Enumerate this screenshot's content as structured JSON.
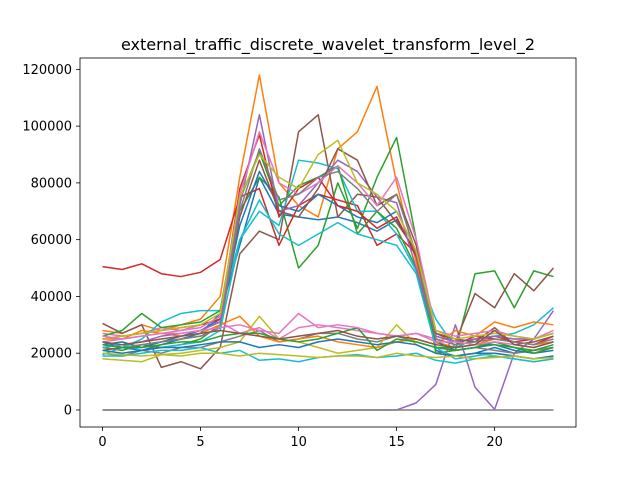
{
  "chart_data": {
    "type": "line",
    "title": "external_traffic_discrete_wavelet_transform_level_2",
    "xlabel": "",
    "ylabel": "",
    "xlim": [
      -1.15,
      24.15
    ],
    "ylim": [
      -6000,
      124000
    ],
    "xticks": [
      0,
      5,
      10,
      15,
      20
    ],
    "xtick_labels": [
      "0",
      "5",
      "10",
      "15",
      "20"
    ],
    "yticks": [
      0,
      20000,
      40000,
      60000,
      80000,
      100000,
      120000
    ],
    "ytick_labels": [
      "0",
      "20000",
      "40000",
      "60000",
      "80000",
      "100000",
      "120000"
    ],
    "grid": false,
    "x": [
      0,
      1,
      2,
      3,
      4,
      5,
      6,
      7,
      8,
      9,
      10,
      11,
      12,
      13,
      14,
      15,
      16,
      17,
      18,
      19,
      20,
      21,
      22,
      23
    ],
    "series": [
      {
        "color": "#1f77b4",
        "values": [
          24000,
          22000,
          21000,
          23000,
          25000,
          27000,
          34000,
          58000,
          82000,
          69000,
          68000,
          67000,
          68000,
          66000,
          63000,
          67000,
          55000,
          21000,
          19000,
          20000,
          22000,
          20000,
          21000,
          22000
        ]
      },
      {
        "color": "#ff7f0e",
        "values": [
          28000,
          27000,
          30000,
          28000,
          30000,
          32000,
          40000,
          82000,
          118000,
          80000,
          72000,
          68000,
          92000,
          98000,
          114000,
          80000,
          52000,
          24000,
          22000,
          23000,
          25000,
          24000,
          23000,
          24000
        ]
      },
      {
        "color": "#2ca02c",
        "values": [
          22000,
          21000,
          23000,
          22000,
          23000,
          25000,
          30000,
          70000,
          82000,
          75000,
          50000,
          58000,
          80000,
          64000,
          82000,
          96000,
          60000,
          20000,
          21000,
          48000,
          49000,
          36000,
          49000,
          47000
        ]
      },
      {
        "color": "#d62728",
        "values": [
          50500,
          49500,
          51500,
          48000,
          47000,
          48500,
          53000,
          75000,
          78000,
          58000,
          72000,
          76000,
          74000,
          72000,
          58000,
          62000,
          55000,
          26000,
          24000,
          25000,
          26000,
          24000,
          25000,
          27000
        ]
      },
      {
        "color": "#9467bd",
        "values": [
          0,
          0,
          0,
          0,
          0,
          0,
          0,
          0,
          0,
          0,
          0,
          0,
          0,
          0,
          0,
          0,
          2500,
          9000,
          30000,
          8000,
          200,
          20000,
          25000,
          35000
        ]
      },
      {
        "color": "#8c564b",
        "values": [
          30500,
          27000,
          30000,
          15000,
          17000,
          14500,
          22000,
          55000,
          63000,
          60000,
          98000,
          104000,
          68000,
          76000,
          75000,
          66000,
          56000,
          27000,
          24000,
          41000,
          36000,
          48000,
          42000,
          50000
        ]
      },
      {
        "color": "#e377c2",
        "values": [
          27000,
          26000,
          27000,
          29000,
          28000,
          30000,
          31000,
          27000,
          29000,
          25000,
          29000,
          30000,
          29000,
          28000,
          27000,
          26000,
          27000,
          25000,
          23000,
          24000,
          26000,
          25000,
          25000,
          27000
        ]
      },
      {
        "color": "#7f7f7f",
        "values": [
          20000,
          19000,
          21000,
          20000,
          22000,
          22000,
          24000,
          26000,
          28000,
          24000,
          25000,
          27000,
          27000,
          25000,
          24000,
          26000,
          24000,
          22000,
          21000,
          22000,
          21000,
          20000,
          21000,
          22000
        ]
      },
      {
        "color": "#bcbd22",
        "values": [
          18000,
          17500,
          17000,
          19500,
          20000,
          21000,
          22000,
          24000,
          33000,
          25000,
          24000,
          22000,
          20000,
          21000,
          22000,
          30000,
          23000,
          20000,
          19000,
          20000,
          19000,
          18000,
          17000,
          18000
        ]
      },
      {
        "color": "#17becf",
        "values": [
          19500,
          22000,
          25000,
          31000,
          34000,
          35000,
          35000,
          60000,
          70000,
          65000,
          88000,
          87000,
          85000,
          70000,
          70000,
          62000,
          49000,
          32000,
          22000,
          25000,
          26000,
          27000,
          30000,
          36000
        ]
      },
      {
        "color": "#1f77b4",
        "values": [
          23000,
          24000,
          22000,
          24000,
          26000,
          28000,
          32000,
          65000,
          84000,
          72000,
          70000,
          76000,
          72000,
          68000,
          66000,
          70000,
          56000,
          24000,
          21000,
          22000,
          23000,
          21000,
          20000,
          21000
        ]
      },
      {
        "color": "#ff7f0e",
        "values": [
          25000,
          25000,
          28000,
          27000,
          26000,
          27000,
          30000,
          33000,
          26000,
          24000,
          25000,
          26000,
          24000,
          23000,
          22000,
          24000,
          25000,
          23000,
          28000,
          26000,
          31000,
          29000,
          31000,
          30000
        ]
      },
      {
        "color": "#2ca02c",
        "values": [
          26000,
          28000,
          34000,
          29000,
          30000,
          31000,
          35000,
          74000,
          91000,
          72000,
          79000,
          82000,
          86000,
          62000,
          70000,
          64000,
          50000,
          22000,
          21000,
          22000,
          24000,
          22000,
          20000,
          22000
        ]
      },
      {
        "color": "#d62728",
        "values": [
          25000,
          26000,
          27000,
          28000,
          29000,
          30000,
          32000,
          78000,
          97000,
          68000,
          78000,
          82000,
          72000,
          70000,
          64000,
          68000,
          54000,
          25000,
          23000,
          26000,
          25000,
          24000,
          23000,
          26000
        ]
      },
      {
        "color": "#9467bd",
        "values": [
          22000,
          23000,
          24000,
          26000,
          27000,
          28000,
          31000,
          72000,
          104000,
          70000,
          72000,
          80000,
          88000,
          84000,
          75000,
          73000,
          50000,
          26000,
          24000,
          25000,
          26000,
          25000,
          25000,
          27000
        ]
      },
      {
        "color": "#8c564b",
        "values": [
          21000,
          22000,
          23000,
          24000,
          25000,
          26000,
          29000,
          68000,
          88000,
          70000,
          68000,
          78000,
          92000,
          88000,
          72000,
          76000,
          58000,
          27000,
          25000,
          24000,
          29000,
          23000,
          24000,
          26000
        ]
      },
      {
        "color": "#e377c2",
        "values": [
          24000,
          25000,
          26000,
          27000,
          28000,
          29000,
          33000,
          76000,
          98000,
          80000,
          76000,
          80000,
          86000,
          80000,
          72000,
          82000,
          60000,
          28000,
          26000,
          27000,
          28000,
          26000,
          25000,
          28000
        ]
      },
      {
        "color": "#7f7f7f",
        "values": [
          23000,
          22000,
          23000,
          24000,
          25000,
          26000,
          29000,
          70000,
          92000,
          74000,
          76000,
          82000,
          84000,
          78000,
          70000,
          76000,
          55000,
          25000,
          23000,
          24000,
          25000,
          24000,
          23000,
          25000
        ]
      },
      {
        "color": "#bcbd22",
        "values": [
          25000,
          26000,
          27000,
          28000,
          29000,
          30000,
          34000,
          75000,
          90000,
          82000,
          78000,
          90000,
          95000,
          80000,
          76000,
          70000,
          56000,
          28000,
          25000,
          26000,
          27000,
          26000,
          25000,
          27000
        ]
      },
      {
        "color": "#17becf",
        "values": [
          22000,
          23000,
          21000,
          22000,
          23000,
          24000,
          28000,
          60000,
          74000,
          62000,
          58000,
          62000,
          66000,
          62000,
          60000,
          58000,
          48000,
          22000,
          18000,
          19000,
          20000,
          19000,
          18000,
          19000
        ]
      },
      {
        "color": "#1f77b4",
        "values": [
          21000,
          20000,
          21000,
          22000,
          22000,
          23000,
          24000,
          24000,
          22000,
          23000,
          22000,
          24000,
          25000,
          24000,
          23000,
          24000,
          23000,
          20000,
          19000,
          20000,
          20000,
          19000,
          18000,
          19000
        ]
      },
      {
        "color": "#2ca02c",
        "values": [
          23000,
          22000,
          22000,
          23000,
          24000,
          24000,
          26000,
          27000,
          27000,
          25000,
          24000,
          25000,
          27000,
          29000,
          21000,
          25000,
          24000,
          22000,
          22000,
          23000,
          23000,
          22000,
          21000,
          23000
        ]
      },
      {
        "color": "#17becf",
        "values": [
          19000,
          19000,
          20000,
          21000,
          21000,
          22000,
          20000,
          21000,
          17500,
          18000,
          17000,
          18500,
          19000,
          19500,
          18500,
          19000,
          20000,
          17500,
          16500,
          18000,
          19000,
          18000,
          17000,
          18000
        ]
      },
      {
        "color": "#bcbd22",
        "values": [
          20000,
          19500,
          19000,
          19500,
          19000,
          20000,
          20000,
          19000,
          20000,
          19500,
          19000,
          18500,
          19000,
          19000,
          18500,
          20000,
          19000,
          18500,
          19000,
          18000,
          18500,
          19000,
          18000,
          18500
        ]
      },
      {
        "color": "#e377c2",
        "values": [
          26000,
          25000,
          26000,
          27000,
          27000,
          28000,
          29000,
          30000,
          28000,
          27000,
          34000,
          29000,
          30000,
          29000,
          27000,
          26000,
          27000,
          24000,
          24000,
          23000,
          24000,
          23000,
          22000,
          24000
        ]
      },
      {
        "color": "#8c564b",
        "values": [
          24000,
          23000,
          24000,
          25000,
          26000,
          27000,
          28000,
          27000,
          26000,
          25000,
          26000,
          27000,
          28000,
          26000,
          25000,
          26000,
          25000,
          23000,
          22000,
          23000,
          28000,
          23000,
          22000,
          24000
        ]
      },
      {
        "color": "#7f7f7f",
        "values": [
          0,
          0,
          0,
          0,
          0,
          0,
          0,
          0,
          0,
          0,
          0,
          0,
          0,
          0,
          0,
          0,
          0,
          0,
          0,
          0,
          0,
          0,
          0,
          0
        ]
      }
    ]
  }
}
